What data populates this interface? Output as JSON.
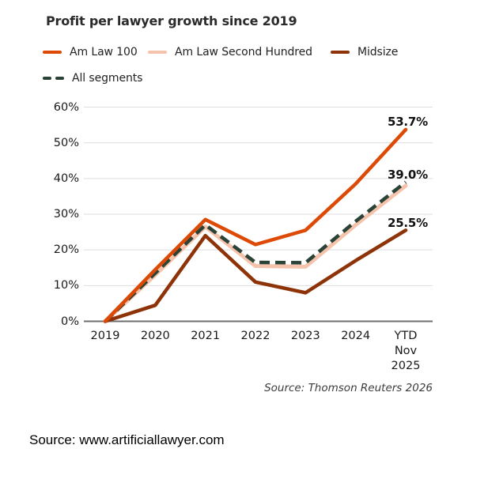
{
  "page": {
    "footer_source": "Source: www.artificiallawyer.com"
  },
  "chart_data": {
    "type": "line",
    "title": "Profit per lawyer growth since 2019",
    "x_labels": [
      "2019",
      "2020",
      "2021",
      "2022",
      "2023",
      "2024",
      "YTD\nNov\n2025"
    ],
    "y_ticks": [
      0,
      10,
      20,
      30,
      40,
      50,
      60
    ],
    "y_suffix": "%",
    "ylim": [
      0,
      60
    ],
    "grid": "horizontal",
    "legend_position": "top",
    "source_note": "Source: Thomson Reuters 2026",
    "series": [
      {
        "name": "Am Law 100",
        "color": "#DD4A06",
        "style": "solid",
        "values": [
          0,
          14.5,
          28.5,
          21.5,
          25.5,
          38.5,
          53.7
        ],
        "end_label": "53.7%"
      },
      {
        "name": "Am Law Second Hundred",
        "color": "#F5C3AB",
        "style": "solid",
        "values": [
          0,
          13,
          26.5,
          15.5,
          15.3,
          27,
          38
        ],
        "end_label": ""
      },
      {
        "name": "Midsize",
        "color": "#8E3207",
        "style": "solid",
        "values": [
          0,
          4.5,
          24,
          11,
          8,
          17,
          25.5
        ],
        "end_label": "25.5%"
      },
      {
        "name": "All segments",
        "color": "#2B4237",
        "style": "dashed",
        "values": [
          0,
          13.5,
          27,
          16.5,
          16.4,
          28,
          39
        ],
        "end_label": "39.0%"
      }
    ]
  }
}
